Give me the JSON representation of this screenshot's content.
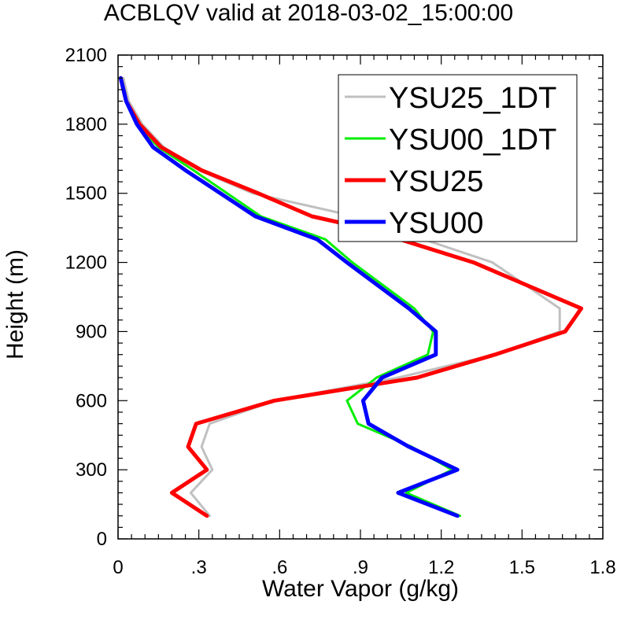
{
  "chart_data": {
    "type": "line",
    "title": "ACBLQV valid at 2018-03-02_15:00:00",
    "xlabel": "Water Vapor (g/kg)",
    "ylabel": "Height (m)",
    "xlim": [
      0,
      1.8
    ],
    "ylim": [
      0,
      2100
    ],
    "xticks": [
      0,
      0.3,
      0.6,
      0.9,
      1.2,
      1.5,
      1.8
    ],
    "xtick_labels": [
      "0",
      ".3",
      ".6",
      ".9",
      "1.2",
      "1.5",
      "1.8"
    ],
    "yticks": [
      0,
      300,
      600,
      900,
      1200,
      1500,
      1800,
      2100
    ],
    "ytick_labels": [
      "0",
      "300",
      "600",
      "900",
      "1200",
      "1500",
      "1800",
      "2100"
    ],
    "legend_position": "top-right",
    "series": [
      {
        "name": "YSU25_1DT",
        "color": "#c0c0c0",
        "width": 3,
        "points": [
          [
            0.34,
            100
          ],
          [
            0.27,
            200
          ],
          [
            0.35,
            300
          ],
          [
            0.31,
            400
          ],
          [
            0.34,
            500
          ],
          [
            0.58,
            600
          ],
          [
            1.04,
            700
          ],
          [
            1.4,
            800
          ],
          [
            1.64,
            900
          ],
          [
            1.64,
            1000
          ],
          [
            1.39,
            1200
          ],
          [
            0.88,
            1400
          ],
          [
            0.5,
            1500
          ],
          [
            0.3,
            1600
          ],
          [
            0.17,
            1700
          ],
          [
            0.09,
            1800
          ],
          [
            0.04,
            1900
          ],
          [
            0.02,
            2000
          ]
        ]
      },
      {
        "name": "YSU00_1DT",
        "color": "#00ee00",
        "width": 3,
        "points": [
          [
            1.27,
            100
          ],
          [
            1.07,
            200
          ],
          [
            1.24,
            300
          ],
          [
            1.09,
            400
          ],
          [
            0.89,
            500
          ],
          [
            0.85,
            600
          ],
          [
            0.96,
            700
          ],
          [
            1.15,
            800
          ],
          [
            1.17,
            900
          ],
          [
            1.1,
            1000
          ],
          [
            0.87,
            1200
          ],
          [
            0.77,
            1300
          ],
          [
            0.53,
            1400
          ],
          [
            0.28,
            1600
          ],
          [
            0.15,
            1700
          ],
          [
            0.07,
            1800
          ],
          [
            0.03,
            1900
          ],
          [
            0.01,
            2000
          ]
        ]
      },
      {
        "name": "YSU25",
        "color": "#ff0000",
        "width": 5,
        "points": [
          [
            0.33,
            100
          ],
          [
            0.2,
            200
          ],
          [
            0.33,
            300
          ],
          [
            0.26,
            400
          ],
          [
            0.29,
            500
          ],
          [
            0.58,
            600
          ],
          [
            1.11,
            700
          ],
          [
            1.4,
            800
          ],
          [
            1.66,
            900
          ],
          [
            1.72,
            1000
          ],
          [
            1.32,
            1200
          ],
          [
            0.91,
            1350
          ],
          [
            0.72,
            1400
          ],
          [
            0.52,
            1500
          ],
          [
            0.31,
            1600
          ],
          [
            0.16,
            1700
          ],
          [
            0.08,
            1800
          ],
          [
            0.03,
            1900
          ],
          [
            0.01,
            2000
          ]
        ]
      },
      {
        "name": "YSU00",
        "color": "#0000ff",
        "width": 5,
        "points": [
          [
            1.26,
            100
          ],
          [
            1.04,
            200
          ],
          [
            1.26,
            300
          ],
          [
            1.08,
            400
          ],
          [
            0.93,
            500
          ],
          [
            0.91,
            600
          ],
          [
            0.98,
            700
          ],
          [
            1.18,
            800
          ],
          [
            1.18,
            900
          ],
          [
            1.08,
            1000
          ],
          [
            0.85,
            1200
          ],
          [
            0.74,
            1300
          ],
          [
            0.51,
            1400
          ],
          [
            0.25,
            1600
          ],
          [
            0.13,
            1700
          ],
          [
            0.07,
            1800
          ],
          [
            0.03,
            1900
          ],
          [
            0.01,
            2000
          ]
        ]
      }
    ]
  }
}
